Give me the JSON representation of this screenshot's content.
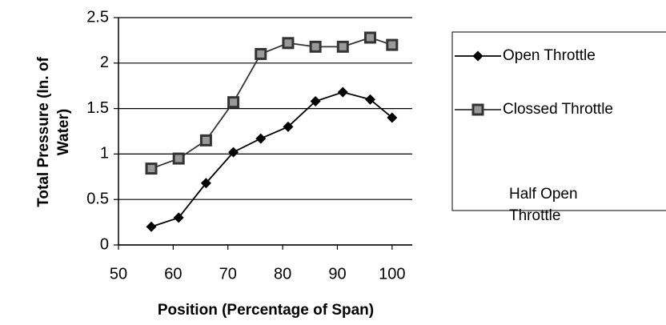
{
  "chart_data": {
    "type": "line",
    "xlabel": "Position (Percentage of Span)",
    "ylabel": [
      "Total Pressure (In. of",
      "Water)"
    ],
    "x": [
      56,
      61,
      66,
      71,
      76,
      81,
      86,
      91,
      96,
      100
    ],
    "series": [
      {
        "name": "Open Throttle",
        "color": "#000000",
        "marker": "diamond",
        "values": [
          0.2,
          0.3,
          0.68,
          1.02,
          1.17,
          1.3,
          1.58,
          1.68,
          1.6,
          1.4
        ]
      },
      {
        "name": "Clossed Throttle",
        "color": "#333333",
        "marker": "square",
        "values": [
          0.84,
          0.95,
          1.15,
          1.57,
          2.1,
          2.22,
          2.18,
          2.18,
          2.28,
          2.2
        ]
      },
      {
        "name": [
          "Half Open",
          "Throttle"
        ],
        "color": "#000000",
        "marker": "none",
        "values": [
          null,
          null,
          null,
          null,
          null,
          null,
          null,
          null,
          null,
          null
        ]
      }
    ],
    "xlim": [
      50,
      105
    ],
    "xticks": [
      50,
      60,
      70,
      80,
      90,
      100
    ],
    "ylim": [
      0,
      2.5
    ],
    "yticks": [
      0,
      0.5,
      1,
      1.5,
      2,
      2.5
    ],
    "grid": true,
    "legend": "right"
  }
}
